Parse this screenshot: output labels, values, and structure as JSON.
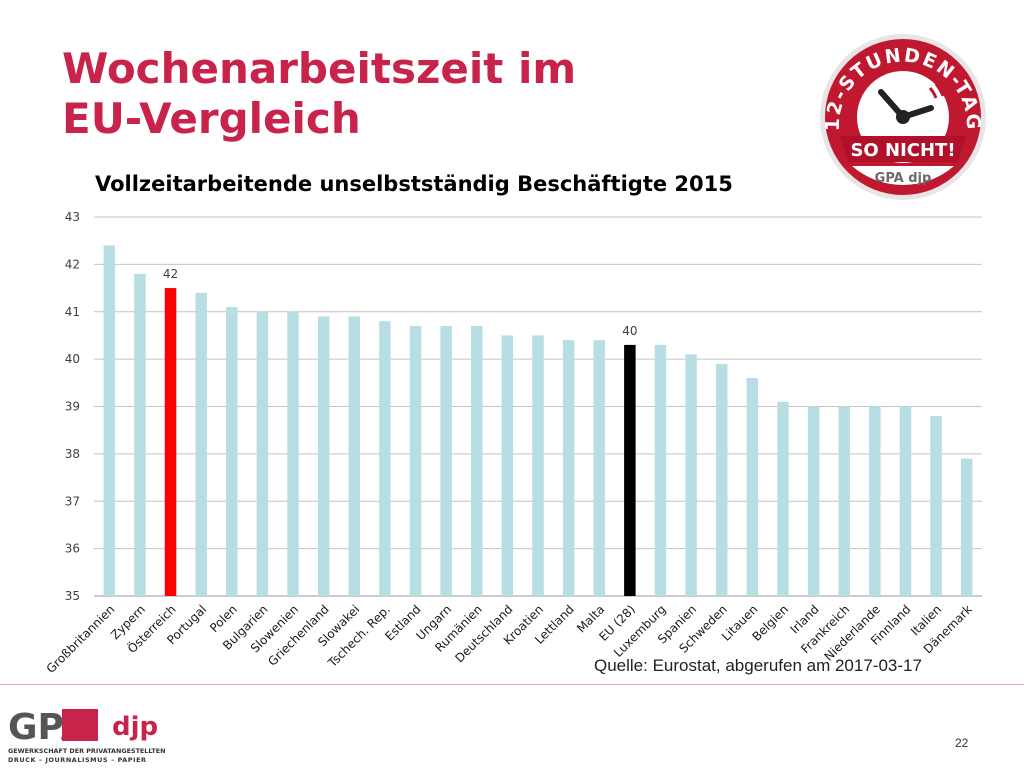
{
  "slide": {
    "title_line1": "Wochenarbeitszeit im",
    "title_line2": "EU-Vergleich",
    "source": "Quelle: Eurostat, abgerufen am 2017-03-17",
    "page_number": "22"
  },
  "badge": {
    "ring_text": "12-STUNDEN-TAG",
    "banner_text": "SO NICHT!",
    "logo_text": "GPA djp",
    "ring_color": "#c0182f",
    "text_color": "#ffffff"
  },
  "footer_logo": {
    "main": "GPA",
    "secondary": "djp",
    "line1": "GEWERKSCHAFT DER PRIVATANGESTELLTEN",
    "line2": "DRUCK – JOURNALISMUS – PAPIER"
  },
  "colors": {
    "title": "#c8234a",
    "bar_default": "#b7dfe3",
    "bar_austria": "#ff0000",
    "bar_eu": "#000000"
  },
  "chart_data": {
    "type": "bar",
    "title": "Vollzeitarbeitende unselbstständig Beschäftigte 2015",
    "xlabel": "",
    "ylabel": "",
    "ylim": [
      35,
      43
    ],
    "yticks": [
      35,
      36,
      37,
      38,
      39,
      40,
      41,
      42,
      43
    ],
    "grid": true,
    "legend": "none",
    "categories": [
      "Großbritannien",
      "Zypern",
      "Österreich",
      "Portugal",
      "Polen",
      "Bulgarien",
      "Slowenien",
      "Griechenland",
      "Slowakei",
      "Tschech. Rep.",
      "Estland",
      "Ungarn",
      "Rumänien",
      "Deutschland",
      "Kroatien",
      "Lettland",
      "Malta",
      "EU (28)",
      "Luxemburg",
      "Spanien",
      "Schweden",
      "Litauen",
      "Belgien",
      "Irland",
      "Frankreich",
      "Niederlande",
      "Finnland",
      "Italien",
      "Dänemark"
    ],
    "values": [
      42.4,
      41.8,
      41.5,
      41.4,
      41.1,
      41.0,
      41.0,
      40.9,
      40.9,
      40.8,
      40.7,
      40.7,
      40.7,
      40.5,
      40.5,
      40.4,
      40.4,
      40.3,
      40.3,
      40.1,
      39.9,
      39.6,
      39.1,
      39.0,
      39.0,
      39.0,
      39.0,
      38.8,
      37.9
    ],
    "highlights": [
      {
        "category": "Österreich",
        "color": "#ff0000",
        "label": "42"
      },
      {
        "category": "EU (28)",
        "color": "#000000",
        "label": "40"
      }
    ]
  }
}
